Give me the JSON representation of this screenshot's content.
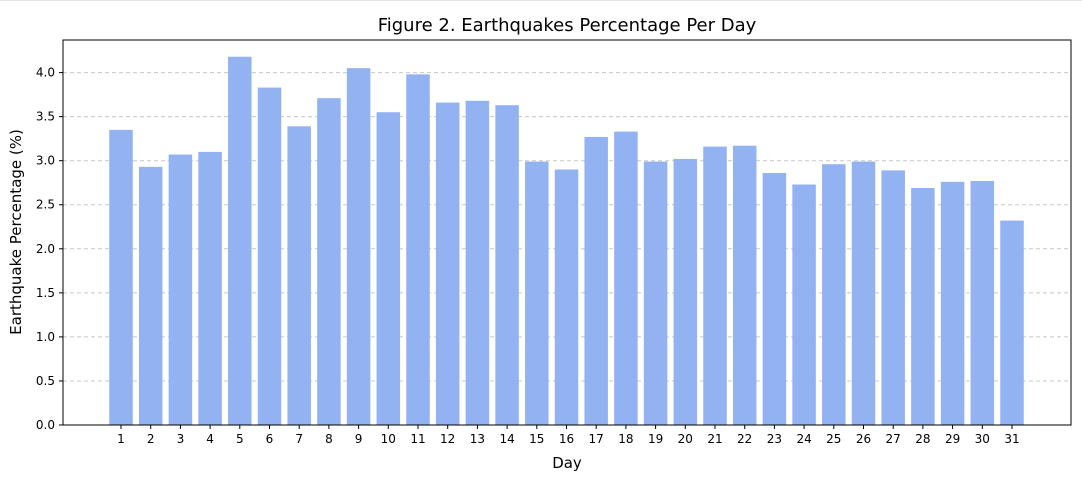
{
  "chart_data": {
    "type": "bar",
    "title": "Figure 2. Earthquakes Percentage Per Day",
    "xlabel": "Day",
    "ylabel": "Earthquake Percentage (%)",
    "categories": [
      "1",
      "2",
      "3",
      "4",
      "5",
      "6",
      "7",
      "8",
      "9",
      "10",
      "11",
      "12",
      "13",
      "14",
      "15",
      "16",
      "17",
      "18",
      "19",
      "20",
      "21",
      "22",
      "23",
      "24",
      "25",
      "26",
      "27",
      "28",
      "29",
      "30",
      "31"
    ],
    "values": [
      3.35,
      2.93,
      3.07,
      3.1,
      4.18,
      3.83,
      3.39,
      3.71,
      4.05,
      3.55,
      3.98,
      3.66,
      3.68,
      3.63,
      2.99,
      2.9,
      3.27,
      3.33,
      2.99,
      3.02,
      3.16,
      3.17,
      2.86,
      2.73,
      2.96,
      2.99,
      2.89,
      2.69,
      2.76,
      2.77,
      2.32
    ],
    "ylim": [
      0,
      4.37
    ],
    "yticks": [
      "0.0",
      "0.5",
      "1.0",
      "1.5",
      "2.0",
      "2.5",
      "3.0",
      "3.5",
      "4.0"
    ],
    "grid": "y-dashed",
    "bar_color": "#92b2f2"
  }
}
